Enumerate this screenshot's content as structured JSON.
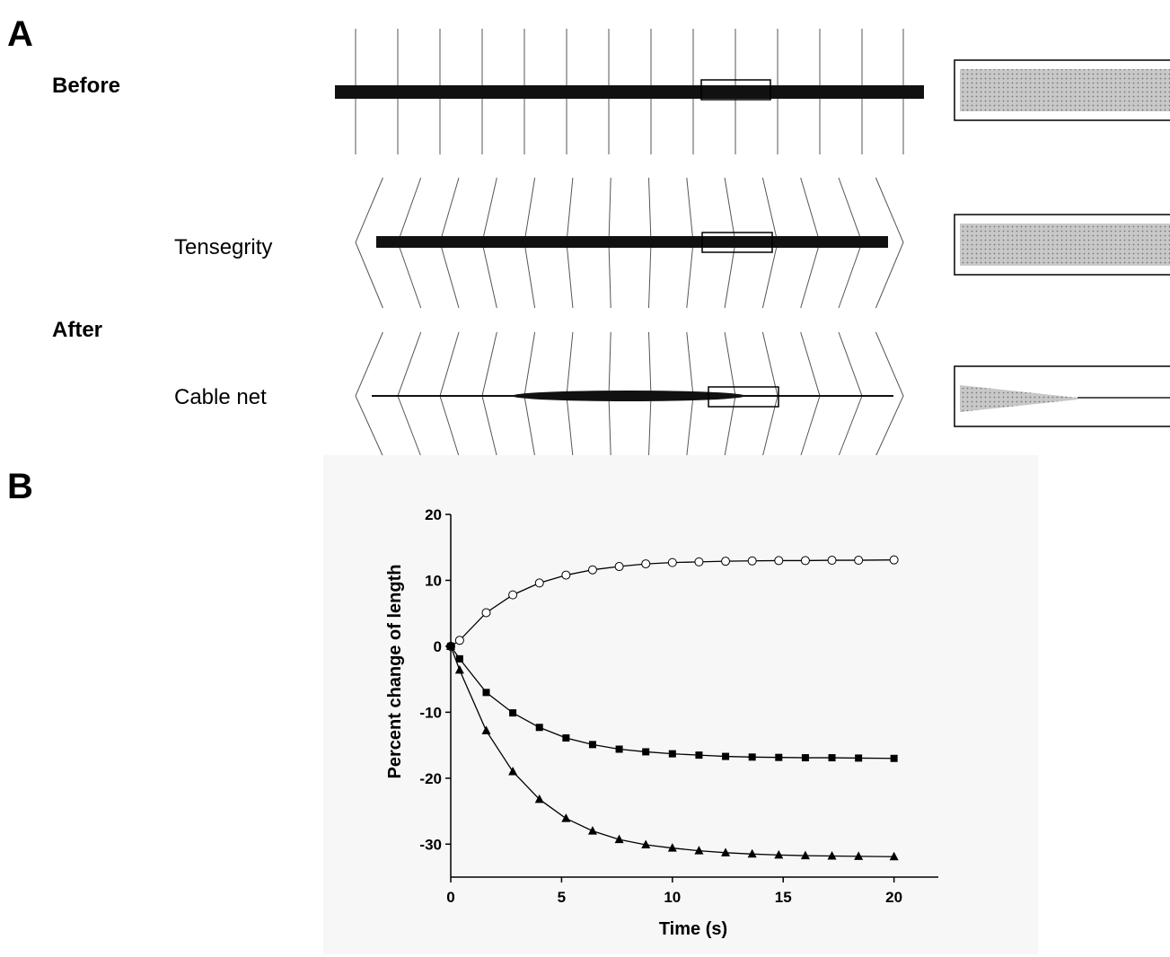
{
  "panel_a": {
    "letter": "A",
    "labels": {
      "before": "Before",
      "tensegrity": "Tensegrity",
      "after": "After",
      "cable_net": "Cable net"
    }
  },
  "panel_b": {
    "letter": "B"
  },
  "colors": {
    "background": "#ffffff",
    "plot_background": "#f7f7f7",
    "ink": "#000000",
    "inset_fill": "#c8c8c8"
  },
  "chart_data": {
    "type": "line",
    "title": "",
    "xlabel": "Time (s)",
    "ylabel": "Percent change of length",
    "xlim": [
      0,
      22
    ],
    "ylim": [
      -35,
      20
    ],
    "xticks": [
      0,
      5,
      10,
      15,
      20
    ],
    "yticks": [
      -30,
      -20,
      -10,
      0,
      10,
      20
    ],
    "grid": false,
    "legend": "none",
    "x": [
      0,
      0.4,
      1.6,
      2.8,
      4.0,
      5.2,
      6.4,
      7.6,
      8.8,
      10.0,
      11.2,
      12.4,
      13.6,
      14.8,
      16.0,
      17.2,
      18.4,
      20.0
    ],
    "series": [
      {
        "marker": "open-circle",
        "values": [
          0,
          0.9,
          5.1,
          7.8,
          9.6,
          10.8,
          11.6,
          12.1,
          12.5,
          12.7,
          12.8,
          12.9,
          12.95,
          13.0,
          13.0,
          13.05,
          13.05,
          13.1
        ]
      },
      {
        "marker": "filled-square",
        "values": [
          0,
          -1.9,
          -7.0,
          -10.1,
          -12.3,
          -13.9,
          -14.9,
          -15.6,
          -16.0,
          -16.3,
          -16.5,
          -16.7,
          -16.8,
          -16.85,
          -16.9,
          -16.9,
          -16.95,
          -17.0
        ]
      },
      {
        "marker": "filled-triangle",
        "values": [
          0,
          -3.6,
          -12.8,
          -19.0,
          -23.2,
          -26.1,
          -28.0,
          -29.3,
          -30.1,
          -30.6,
          -31.0,
          -31.3,
          -31.5,
          -31.65,
          -31.75,
          -31.8,
          -31.85,
          -31.9
        ]
      }
    ]
  }
}
